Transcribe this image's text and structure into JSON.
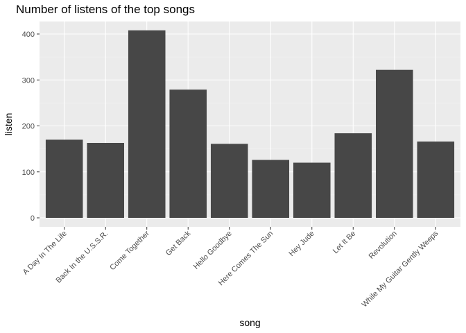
{
  "chart_data": {
    "type": "bar",
    "title": "Number of listens of the top songs",
    "xlabel": "song",
    "ylabel": "listen",
    "categories": [
      "A Day In The Life",
      "Back In the U.S.S.R.",
      "Come Together",
      "Get Back",
      "Hello Goodbye",
      "Here Comes The Sun",
      "Hey Jude",
      "Let It Be",
      "Revolution",
      "While My Guitar Gently Weeps"
    ],
    "values": [
      170,
      163,
      408,
      279,
      161,
      126,
      120,
      184,
      322,
      166
    ],
    "ylim": [
      0,
      430
    ],
    "yticks": [
      0,
      100,
      200,
      300,
      400
    ],
    "grid": true,
    "legend": "none",
    "colors": {
      "panel": "#ebebeb",
      "bar": "#474747",
      "grid_major": "#ffffff",
      "grid_minor": "#f5f5f5",
      "tick_text": "#4d4d4d",
      "tick_mark": "#333333"
    }
  }
}
